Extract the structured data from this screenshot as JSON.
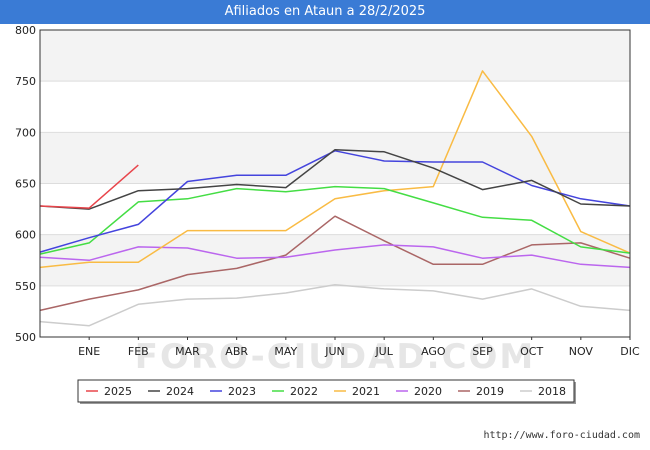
{
  "header": {
    "title": "Afiliados en Ataun a 28/2/2025"
  },
  "footer": {
    "source": "http://www.foro-ciudad.com"
  },
  "watermark": "FORO-CIUDAD.COM",
  "chart_data": {
    "type": "line",
    "title": "Afiliados en Ataun a 28/2/2025",
    "categories": [
      "",
      "ENE",
      "FEB",
      "MAR",
      "ABR",
      "MAY",
      "JUN",
      "JUL",
      "AGO",
      "SEP",
      "OCT",
      "NOV",
      "DIC"
    ],
    "y_ticks": [
      500,
      550,
      600,
      650,
      700,
      750,
      800
    ],
    "ylim": [
      500,
      800
    ],
    "grid": "horizontal bands",
    "legend_position": "bottom",
    "series": [
      {
        "name": "2025",
        "color": "#e8454b",
        "values": [
          628,
          626,
          668,
          null,
          null,
          null,
          null,
          null,
          null,
          null,
          null,
          null,
          null
        ]
      },
      {
        "name": "2024",
        "color": "#444444",
        "values": [
          628,
          625,
          643,
          645,
          649,
          646,
          683,
          681,
          665,
          644,
          653,
          630,
          628
        ]
      },
      {
        "name": "2023",
        "color": "#4444dd",
        "values": [
          583,
          597,
          610,
          652,
          658,
          658,
          682,
          672,
          671,
          671,
          648,
          635,
          628
        ]
      },
      {
        "name": "2022",
        "color": "#44dd44",
        "values": [
          581,
          592,
          632,
          635,
          645,
          642,
          647,
          645,
          631,
          617,
          614,
          588,
          582
        ]
      },
      {
        "name": "2021",
        "color": "#f9bb44",
        "values": [
          568,
          573,
          573,
          604,
          604,
          604,
          635,
          643,
          647,
          760,
          696,
          603,
          582
        ]
      },
      {
        "name": "2020",
        "color": "#bb66ee",
        "values": [
          578,
          575,
          588,
          587,
          577,
          578,
          585,
          590,
          588,
          577,
          580,
          571,
          568
        ]
      },
      {
        "name": "2019",
        "color": "#aa6666",
        "values": [
          526,
          537,
          546,
          561,
          567,
          580,
          618,
          594,
          571,
          571,
          590,
          592,
          577
        ]
      },
      {
        "name": "2018",
        "color": "#cccccc",
        "values": [
          515,
          511,
          532,
          537,
          538,
          543,
          551,
          547,
          545,
          537,
          547,
          530,
          526
        ]
      }
    ]
  }
}
